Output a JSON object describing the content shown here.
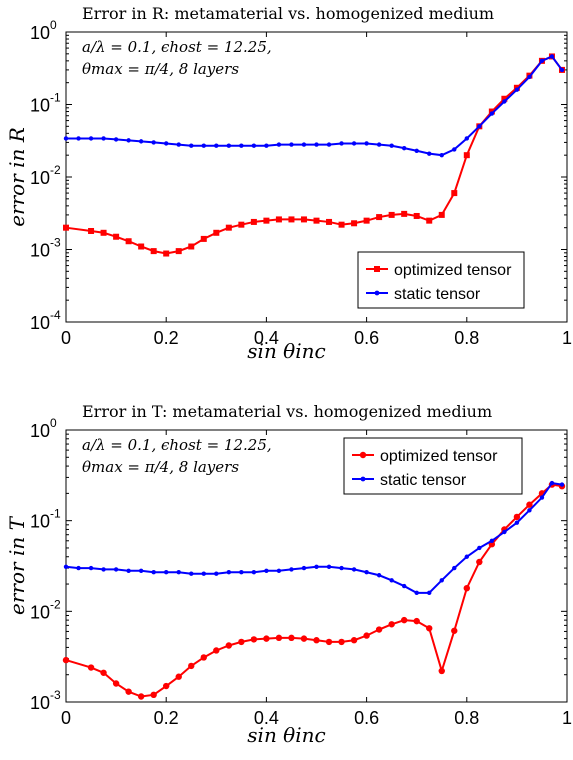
{
  "chart_data": [
    {
      "type": "line",
      "title": "Error in R: metamaterial vs. homogenized medium",
      "annotations": [
        "a/λ = 0.1, ϵhost = 12.25,",
        "θmax = π/4, 8 layers"
      ],
      "xlabel": "sin θinc",
      "ylabel": "error in R",
      "xlim": [
        0,
        1
      ],
      "ylim_exp": [
        -4,
        0
      ],
      "yscale": "log",
      "xticks": [
        "0",
        "0.2",
        "0.4",
        "0.6",
        "0.8",
        "1"
      ],
      "yticks": [
        {
          "base": "10",
          "exp": "0"
        },
        {
          "base": "10",
          "exp": "-1"
        },
        {
          "base": "10",
          "exp": "-2"
        },
        {
          "base": "10",
          "exp": "-3"
        },
        {
          "base": "10",
          "exp": "-4"
        }
      ],
      "legend_position": "lower-right",
      "series": [
        {
          "name": "optimized tensor",
          "color": "#ff0000",
          "marker": "square",
          "x": [
            0,
            0.05,
            0.075,
            0.1,
            0.125,
            0.15,
            0.175,
            0.2,
            0.225,
            0.25,
            0.275,
            0.3,
            0.325,
            0.35,
            0.375,
            0.4,
            0.425,
            0.45,
            0.475,
            0.5,
            0.525,
            0.55,
            0.575,
            0.6,
            0.625,
            0.65,
            0.675,
            0.7,
            0.725,
            0.75,
            0.775,
            0.8,
            0.825,
            0.85,
            0.875,
            0.9,
            0.925,
            0.95,
            0.97,
            0.99
          ],
          "y": [
            0.002,
            0.0018,
            0.0017,
            0.0015,
            0.0013,
            0.0011,
            0.00095,
            0.00088,
            0.00095,
            0.0011,
            0.0014,
            0.0017,
            0.002,
            0.0022,
            0.0024,
            0.0025,
            0.0026,
            0.0026,
            0.0026,
            0.0025,
            0.0024,
            0.0022,
            0.0023,
            0.0025,
            0.0028,
            0.003,
            0.0031,
            0.0029,
            0.0025,
            0.003,
            0.006,
            0.02,
            0.05,
            0.08,
            0.12,
            0.17,
            0.25,
            0.4,
            0.46,
            0.3
          ]
        },
        {
          "name": "static tensor",
          "color": "#0000ff",
          "marker": "dot",
          "x": [
            0,
            0.025,
            0.05,
            0.075,
            0.1,
            0.125,
            0.15,
            0.175,
            0.2,
            0.225,
            0.25,
            0.275,
            0.3,
            0.325,
            0.35,
            0.375,
            0.4,
            0.425,
            0.45,
            0.475,
            0.5,
            0.525,
            0.55,
            0.575,
            0.6,
            0.625,
            0.65,
            0.675,
            0.7,
            0.725,
            0.75,
            0.775,
            0.8,
            0.825,
            0.85,
            0.875,
            0.9,
            0.925,
            0.95,
            0.97,
            0.99
          ],
          "y": [
            0.034,
            0.034,
            0.034,
            0.034,
            0.033,
            0.032,
            0.031,
            0.03,
            0.029,
            0.028,
            0.027,
            0.027,
            0.027,
            0.027,
            0.027,
            0.027,
            0.027,
            0.028,
            0.028,
            0.028,
            0.028,
            0.028,
            0.029,
            0.029,
            0.029,
            0.028,
            0.027,
            0.025,
            0.023,
            0.021,
            0.02,
            0.024,
            0.034,
            0.05,
            0.075,
            0.11,
            0.16,
            0.24,
            0.4,
            0.46,
            0.3
          ]
        }
      ]
    },
    {
      "type": "line",
      "title": "Error in T: metamaterial vs. homogenized medium",
      "annotations": [
        "a/λ = 0.1, ϵhost = 12.25,",
        "θmax = π/4, 8 layers"
      ],
      "xlabel": "sin θinc",
      "ylabel": "error in T",
      "xlim": [
        0,
        1
      ],
      "ylim_exp": [
        -3,
        0
      ],
      "yscale": "log",
      "xticks": [
        "0",
        "0.2",
        "0.4",
        "0.6",
        "0.8",
        "1"
      ],
      "yticks": [
        {
          "base": "10",
          "exp": "0"
        },
        {
          "base": "10",
          "exp": "-1"
        },
        {
          "base": "10",
          "exp": "-2"
        },
        {
          "base": "10",
          "exp": "-3"
        }
      ],
      "legend_position": "top-right",
      "series": [
        {
          "name": "optimized tensor",
          "color": "#ff0000",
          "marker": "dot-large",
          "x": [
            0,
            0.05,
            0.075,
            0.1,
            0.125,
            0.15,
            0.175,
            0.2,
            0.225,
            0.25,
            0.275,
            0.3,
            0.325,
            0.35,
            0.375,
            0.4,
            0.425,
            0.45,
            0.475,
            0.5,
            0.525,
            0.55,
            0.575,
            0.6,
            0.625,
            0.65,
            0.675,
            0.7,
            0.725,
            0.75,
            0.775,
            0.8,
            0.825,
            0.85,
            0.875,
            0.9,
            0.925,
            0.95,
            0.97,
            0.99
          ],
          "y": [
            0.0029,
            0.0024,
            0.0021,
            0.0016,
            0.0013,
            0.00115,
            0.0012,
            0.0015,
            0.0019,
            0.0025,
            0.0031,
            0.0037,
            0.0042,
            0.0046,
            0.0049,
            0.005,
            0.0051,
            0.0051,
            0.005,
            0.0048,
            0.0046,
            0.0046,
            0.0048,
            0.0054,
            0.0063,
            0.0072,
            0.008,
            0.0078,
            0.0065,
            0.0022,
            0.0061,
            0.018,
            0.035,
            0.055,
            0.08,
            0.11,
            0.15,
            0.2,
            0.25,
            0.24
          ]
        },
        {
          "name": "static tensor",
          "color": "#0000ff",
          "marker": "dot",
          "x": [
            0,
            0.025,
            0.05,
            0.075,
            0.1,
            0.125,
            0.15,
            0.175,
            0.2,
            0.225,
            0.25,
            0.275,
            0.3,
            0.325,
            0.35,
            0.375,
            0.4,
            0.425,
            0.45,
            0.475,
            0.5,
            0.525,
            0.55,
            0.575,
            0.6,
            0.625,
            0.65,
            0.675,
            0.7,
            0.725,
            0.75,
            0.775,
            0.8,
            0.825,
            0.85,
            0.875,
            0.9,
            0.925,
            0.95,
            0.97,
            0.99
          ],
          "y": [
            0.031,
            0.03,
            0.03,
            0.029,
            0.029,
            0.028,
            0.028,
            0.027,
            0.027,
            0.027,
            0.026,
            0.026,
            0.026,
            0.027,
            0.027,
            0.027,
            0.028,
            0.028,
            0.029,
            0.03,
            0.031,
            0.031,
            0.03,
            0.029,
            0.027,
            0.025,
            0.022,
            0.019,
            0.016,
            0.016,
            0.022,
            0.03,
            0.04,
            0.05,
            0.06,
            0.075,
            0.095,
            0.13,
            0.18,
            0.26,
            0.25
          ]
        }
      ]
    }
  ]
}
